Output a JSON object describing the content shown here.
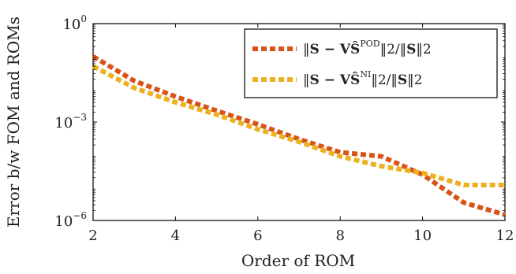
{
  "chart_data": {
    "type": "line",
    "title": "",
    "xlabel": "Order of ROM",
    "ylabel": "Error b/w FOM and ROMs",
    "xlim": [
      2,
      12
    ],
    "ylim": [
      1e-06,
      1
    ],
    "yscale": "log",
    "x_ticks": [
      "2",
      "4",
      "6",
      "8",
      "10",
      "12"
    ],
    "y_ticks": [
      {
        "base": "10",
        "exp": "0"
      },
      {
        "base": "10",
        "exp": "−3"
      },
      {
        "base": "10",
        "exp": "−6"
      }
    ],
    "grid": false,
    "legend_position": "top-right",
    "x": [
      2,
      3,
      4,
      5,
      6,
      7,
      8,
      9,
      10,
      11,
      12
    ],
    "series": [
      {
        "name": "‖S − VŜ^POD‖2/‖S‖2",
        "legend_parts": {
          "pre": "‖",
          "bold1": "S − VŜ",
          "sup": "POD",
          "mid": "‖2/‖",
          "bold2": "S",
          "post": "‖2"
        },
        "color": "#d95319",
        "values": [
          0.1,
          0.018,
          0.006,
          0.0022,
          0.00085,
          0.0003,
          0.00012,
          9e-05,
          2.5e-05,
          3.5e-06,
          1.5e-06
        ]
      },
      {
        "name": "‖S − VŜ^NI‖2/‖S‖2",
        "legend_parts": {
          "pre": "‖",
          "bold1": "S − VŜ",
          "sup": "NI",
          "mid": "‖2/‖",
          "bold2": "S",
          "post": "‖2"
        },
        "color": "#edb120",
        "values": [
          0.05,
          0.011,
          0.004,
          0.0017,
          0.0006,
          0.00025,
          9e-05,
          4.5e-05,
          2.8e-05,
          1.2e-05,
          1.2e-05
        ]
      }
    ]
  }
}
